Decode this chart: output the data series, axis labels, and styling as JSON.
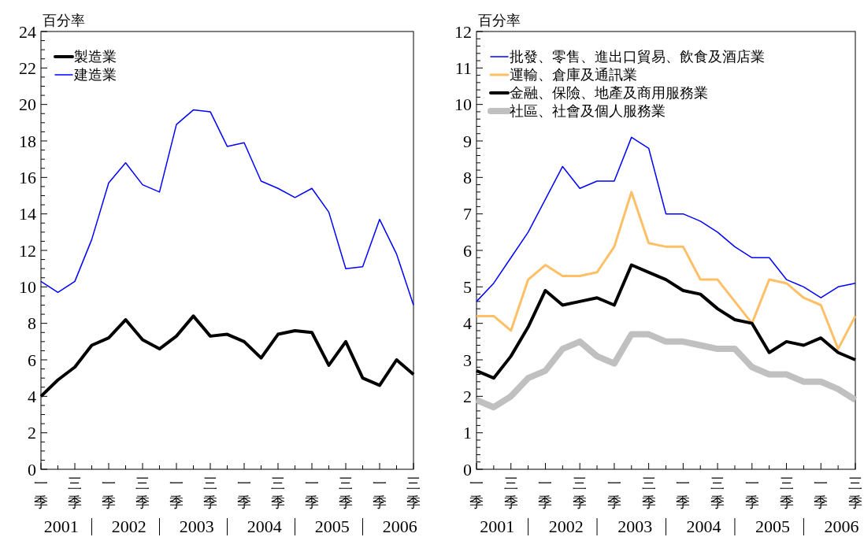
{
  "chart_data": [
    {
      "type": "line",
      "ylabel": "百分率",
      "categories": [
        "一季",
        null,
        "三季",
        null,
        "一季",
        null,
        "三季",
        null,
        "一季",
        null,
        "三季",
        null,
        "一季",
        null,
        "三季",
        null,
        "一季",
        null,
        "三季",
        null,
        "一季",
        null,
        "三季"
      ],
      "series": [
        {
          "name": "製造業",
          "color": "#000000",
          "values": [
            4.0,
            4.9,
            5.6,
            6.8,
            7.2,
            8.2,
            7.1,
            6.6,
            7.3,
            8.4,
            7.3,
            7.4,
            7.0,
            6.1,
            7.4,
            7.6,
            7.5,
            5.7,
            7.0,
            5.0,
            4.6,
            6.0,
            5.2
          ]
        },
        {
          "name": "建造業",
          "color": "#0000ff",
          "values": [
            10.3,
            9.7,
            10.3,
            12.6,
            15.7,
            16.8,
            15.6,
            15.2,
            18.9,
            19.7,
            19.6,
            17.7,
            17.9,
            15.8,
            15.4,
            14.9,
            15.4,
            14.1,
            11.0,
            11.1,
            13.7,
            11.8,
            9.0
          ]
        }
      ],
      "ylim": [
        0,
        24
      ],
      "yticks": [
        0,
        2,
        4,
        6,
        8,
        10,
        12,
        14,
        16,
        18,
        20,
        22,
        24
      ],
      "legend": "top left",
      "grid": false,
      "annotations": [
        "2001",
        "2002",
        "2003",
        "2004",
        "2005",
        "2006"
      ]
    },
    {
      "type": "line",
      "ylabel": "百分率",
      "categories": [
        "一季",
        null,
        "三季",
        null,
        "一季",
        null,
        "三季",
        null,
        "一季",
        null,
        "三季",
        null,
        "一季",
        null,
        "三季",
        null,
        "一季",
        null,
        "三季",
        null,
        "一季",
        null,
        "三季"
      ],
      "series": [
        {
          "name": "批發、零售、進出口貿易、飲食及酒店業",
          "color": "#0000ff",
          "values": [
            4.6,
            5.1,
            5.8,
            6.5,
            7.4,
            8.3,
            7.7,
            7.9,
            7.9,
            9.1,
            8.8,
            7.0,
            7.0,
            6.8,
            6.5,
            6.1,
            5.8,
            5.8,
            5.2,
            5.0,
            4.7,
            5.0,
            5.1
          ]
        },
        {
          "name": "運輸、倉庫及通訊業",
          "color": "#ffbf66",
          "values": [
            4.2,
            4.2,
            3.8,
            5.2,
            5.6,
            5.3,
            5.3,
            5.4,
            6.1,
            7.6,
            6.2,
            6.1,
            6.1,
            5.2,
            5.2,
            4.6,
            4.0,
            5.2,
            5.1,
            4.7,
            4.5,
            3.3,
            4.2
          ]
        },
        {
          "name": "金融、保險、地產及商用服務業",
          "color": "#000000",
          "values": [
            2.7,
            2.5,
            3.1,
            3.9,
            4.9,
            4.5,
            4.6,
            4.7,
            4.5,
            5.6,
            5.4,
            5.2,
            4.9,
            4.8,
            4.4,
            4.1,
            4.0,
            3.2,
            3.5,
            3.4,
            3.6,
            3.2,
            3.0
          ]
        },
        {
          "name": "社區、社會及個人服務業",
          "color": "#c0c0c0",
          "values": [
            1.9,
            1.7,
            2.0,
            2.5,
            2.7,
            3.3,
            3.5,
            3.1,
            2.9,
            3.7,
            3.7,
            3.5,
            3.5,
            3.4,
            3.3,
            3.3,
            2.8,
            2.6,
            2.6,
            2.4,
            2.4,
            2.2,
            1.9
          ]
        }
      ],
      "ylim": [
        0,
        12
      ],
      "yticks": [
        0,
        1,
        2,
        3,
        4,
        5,
        6,
        7,
        8,
        9,
        10,
        11,
        12
      ],
      "legend": "top left",
      "grid": false,
      "annotations": [
        "2001",
        "2002",
        "2003",
        "2004",
        "2005",
        "2006"
      ]
    }
  ]
}
